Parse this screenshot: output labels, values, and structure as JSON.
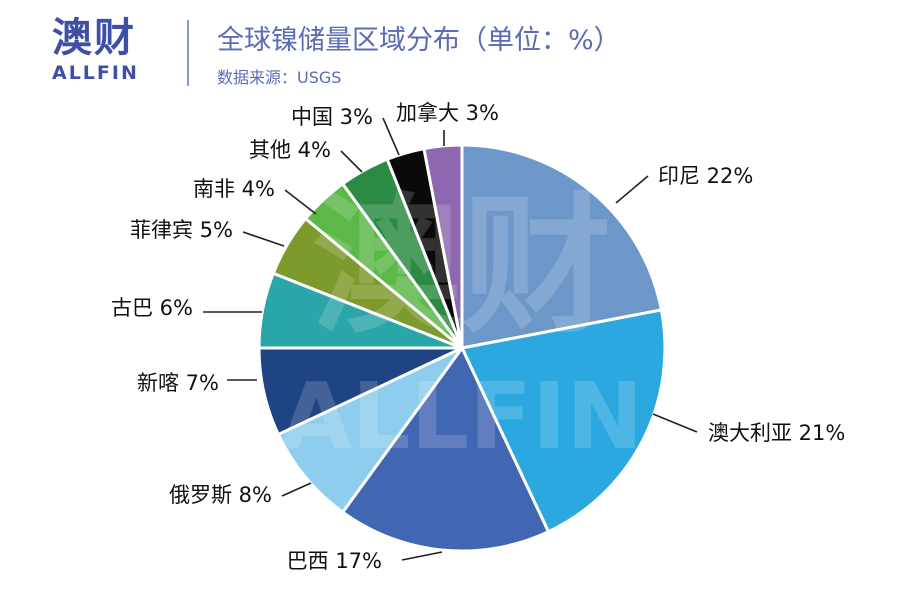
{
  "header": {
    "logo_cn": "澳财",
    "logo_en": "ALLFIN",
    "title": "全球镍储量区域分布（单位：%）",
    "source": "数据来源：USGS"
  },
  "watermark": {
    "cn": "澳财",
    "en": "ALLFIN"
  },
  "chart_data": {
    "type": "pie",
    "title": "全球镍储量区域分布（单位：%）",
    "unit": "%",
    "slices": [
      {
        "label": "印尼",
        "value": 22,
        "display": "印尼 22%",
        "color": "#6d97c9"
      },
      {
        "label": "澳大利亚",
        "value": 21,
        "display": "澳大利亚 21%",
        "color": "#2ba8e0"
      },
      {
        "label": "巴西",
        "value": 17,
        "display": "巴西 17%",
        "color": "#4267b2"
      },
      {
        "label": "俄罗斯",
        "value": 8,
        "display": "俄罗斯 8%",
        "color": "#8ecdee"
      },
      {
        "label": "新喀",
        "value": 7,
        "display": "新喀 7%",
        "color": "#1f4483"
      },
      {
        "label": "古巴",
        "value": 6,
        "display": "古巴 6%",
        "color": "#2aa6a8"
      },
      {
        "label": "菲律宾",
        "value": 5,
        "display": "菲律宾 5%",
        "color": "#7d9a2c"
      },
      {
        "label": "南非",
        "value": 4,
        "display": "南非 4%",
        "color": "#5bb849"
      },
      {
        "label": "其他",
        "value": 4,
        "display": "其他 4%",
        "color": "#2b8a43"
      },
      {
        "label": "中国",
        "value": 3,
        "display": "中国 3%",
        "color": "#0a0a0a"
      },
      {
        "label": "加拿大",
        "value": 3,
        "display": "加拿大 3%",
        "color": "#8d67b0"
      }
    ]
  }
}
